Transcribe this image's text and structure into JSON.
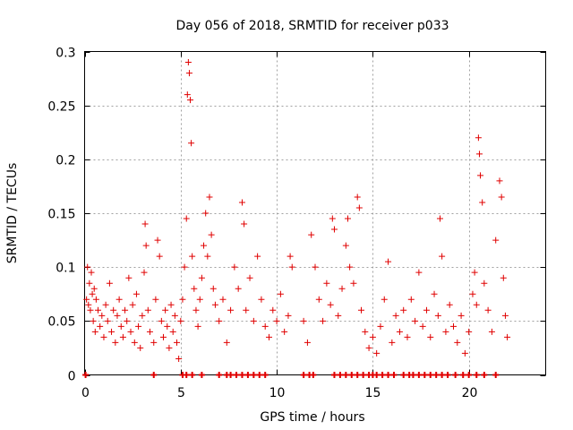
{
  "chart_data": {
    "type": "scatter",
    "title": "Day 056 of 2018, SRMTID for receiver p033",
    "xlabel": "GPS time / hours",
    "ylabel": "SRMTID / TECUs",
    "xlim": [
      0,
      24
    ],
    "ylim": [
      0,
      0.3
    ],
    "grid": true,
    "marker": "+",
    "color": "#e00000",
    "x_ticks": [
      0,
      5,
      10,
      15,
      20
    ],
    "x_tick_labels": [
      "0",
      "5",
      "10",
      "15",
      "20"
    ],
    "y_ticks": [
      0,
      0.05,
      0.1,
      0.15,
      0.2,
      0.25,
      0.3
    ],
    "y_tick_labels": [
      "0",
      "0.05",
      "0.1",
      "0.15",
      "0.2",
      "0.25",
      "0.3"
    ],
    "series": [
      {
        "name": "SRMTID",
        "points": [
          [
            0.1,
            0.07
          ],
          [
            0.15,
            0.1
          ],
          [
            0.2,
            0.065
          ],
          [
            0.25,
            0.085
          ],
          [
            0.3,
            0.06
          ],
          [
            0.35,
            0.095
          ],
          [
            0.4,
            0.075
          ],
          [
            0.45,
            0.05
          ],
          [
            0.5,
            0.08
          ],
          [
            0.55,
            0.04
          ],
          [
            0.6,
            0.07
          ],
          [
            0.7,
            0.06
          ],
          [
            0.8,
            0.045
          ],
          [
            0.9,
            0.055
          ],
          [
            1.0,
            0.035
          ],
          [
            1.1,
            0.065
          ],
          [
            1.2,
            0.05
          ],
          [
            1.3,
            0.085
          ],
          [
            1.4,
            0.04
          ],
          [
            1.5,
            0.06
          ],
          [
            1.6,
            0.03
          ],
          [
            1.7,
            0.055
          ],
          [
            1.8,
            0.07
          ],
          [
            1.9,
            0.045
          ],
          [
            2.0,
            0.035
          ],
          [
            2.1,
            0.06
          ],
          [
            2.2,
            0.05
          ],
          [
            2.3,
            0.09
          ],
          [
            2.4,
            0.04
          ],
          [
            2.5,
            0.065
          ],
          [
            2.6,
            0.03
          ],
          [
            2.7,
            0.075
          ],
          [
            2.8,
            0.045
          ],
          [
            2.9,
            0.025
          ],
          [
            3.0,
            0.055
          ],
          [
            3.1,
            0.095
          ],
          [
            3.15,
            0.14
          ],
          [
            3.2,
            0.12
          ],
          [
            3.3,
            0.06
          ],
          [
            3.4,
            0.04
          ],
          [
            3.6,
            0.03
          ],
          [
            3.7,
            0.07
          ],
          [
            3.8,
            0.125
          ],
          [
            3.9,
            0.11
          ],
          [
            4.0,
            0.05
          ],
          [
            4.1,
            0.035
          ],
          [
            4.2,
            0.06
          ],
          [
            4.3,
            0.045
          ],
          [
            4.4,
            0.025
          ],
          [
            4.5,
            0.065
          ],
          [
            4.6,
            0.04
          ],
          [
            4.7,
            0.055
          ],
          [
            4.8,
            0.03
          ],
          [
            4.9,
            0.015
          ],
          [
            5.0,
            0.05
          ],
          [
            5.1,
            0.07
          ],
          [
            5.2,
            0.1
          ],
          [
            5.3,
            0.145
          ],
          [
            5.35,
            0.26
          ],
          [
            5.4,
            0.29
          ],
          [
            5.45,
            0.28
          ],
          [
            5.5,
            0.255
          ],
          [
            5.55,
            0.215
          ],
          [
            5.6,
            0.11
          ],
          [
            5.7,
            0.08
          ],
          [
            5.8,
            0.06
          ],
          [
            5.9,
            0.045
          ],
          [
            6.0,
            0.07
          ],
          [
            6.1,
            0.09
          ],
          [
            6.2,
            0.12
          ],
          [
            6.3,
            0.15
          ],
          [
            6.4,
            0.11
          ],
          [
            6.5,
            0.165
          ],
          [
            6.6,
            0.13
          ],
          [
            6.7,
            0.08
          ],
          [
            6.8,
            0.065
          ],
          [
            7.0,
            0.05
          ],
          [
            7.2,
            0.07
          ],
          [
            7.4,
            0.03
          ],
          [
            7.6,
            0.06
          ],
          [
            7.8,
            0.1
          ],
          [
            8.0,
            0.08
          ],
          [
            8.2,
            0.16
          ],
          [
            8.3,
            0.14
          ],
          [
            8.4,
            0.06
          ],
          [
            8.6,
            0.09
          ],
          [
            8.8,
            0.05
          ],
          [
            9.0,
            0.11
          ],
          [
            9.2,
            0.07
          ],
          [
            9.4,
            0.045
          ],
          [
            9.6,
            0.035
          ],
          [
            9.8,
            0.06
          ],
          [
            10.0,
            0.05
          ],
          [
            10.2,
            0.075
          ],
          [
            10.4,
            0.04
          ],
          [
            10.6,
            0.055
          ],
          [
            10.7,
            0.11
          ],
          [
            10.8,
            0.1
          ],
          [
            11.4,
            0.05
          ],
          [
            11.6,
            0.03
          ],
          [
            11.8,
            0.13
          ],
          [
            12.0,
            0.1
          ],
          [
            12.2,
            0.07
          ],
          [
            12.4,
            0.05
          ],
          [
            12.6,
            0.085
          ],
          [
            12.8,
            0.065
          ],
          [
            12.9,
            0.145
          ],
          [
            13.0,
            0.135
          ],
          [
            13.2,
            0.055
          ],
          [
            13.4,
            0.08
          ],
          [
            13.6,
            0.12
          ],
          [
            13.7,
            0.145
          ],
          [
            13.8,
            0.1
          ],
          [
            14.0,
            0.085
          ],
          [
            14.2,
            0.165
          ],
          [
            14.3,
            0.155
          ],
          [
            14.4,
            0.06
          ],
          [
            14.6,
            0.04
          ],
          [
            14.8,
            0.025
          ],
          [
            15.0,
            0.035
          ],
          [
            15.2,
            0.02
          ],
          [
            15.4,
            0.045
          ],
          [
            15.6,
            0.07
          ],
          [
            15.8,
            0.105
          ],
          [
            16.0,
            0.03
          ],
          [
            16.2,
            0.055
          ],
          [
            16.4,
            0.04
          ],
          [
            16.6,
            0.06
          ],
          [
            16.8,
            0.035
          ],
          [
            17.0,
            0.07
          ],
          [
            17.2,
            0.05
          ],
          [
            17.4,
            0.095
          ],
          [
            17.6,
            0.045
          ],
          [
            17.8,
            0.06
          ],
          [
            18.0,
            0.035
          ],
          [
            18.2,
            0.075
          ],
          [
            18.4,
            0.055
          ],
          [
            18.5,
            0.145
          ],
          [
            18.6,
            0.11
          ],
          [
            18.8,
            0.04
          ],
          [
            19.0,
            0.065
          ],
          [
            19.2,
            0.045
          ],
          [
            19.4,
            0.03
          ],
          [
            19.6,
            0.055
          ],
          [
            19.8,
            0.02
          ],
          [
            20.0,
            0.04
          ],
          [
            20.2,
            0.075
          ],
          [
            20.3,
            0.095
          ],
          [
            20.4,
            0.065
          ],
          [
            20.5,
            0.22
          ],
          [
            20.55,
            0.205
          ],
          [
            20.6,
            0.185
          ],
          [
            20.7,
            0.16
          ],
          [
            20.8,
            0.085
          ],
          [
            21.0,
            0.06
          ],
          [
            21.2,
            0.04
          ],
          [
            21.4,
            0.125
          ],
          [
            21.6,
            0.18
          ],
          [
            21.7,
            0.165
          ],
          [
            21.8,
            0.09
          ],
          [
            21.9,
            0.055
          ],
          [
            22.0,
            0.035
          ]
        ]
      }
    ],
    "zero_markers": [
      0.05,
      3.6,
      5.1,
      5.3,
      5.6,
      6.1,
      7.0,
      7.4,
      7.6,
      7.9,
      8.2,
      8.5,
      8.8,
      9.1,
      9.4,
      11.4,
      11.7,
      11.9,
      13.0,
      13.3,
      13.6,
      13.9,
      14.2,
      14.5,
      14.8,
      15.0,
      15.2,
      15.5,
      15.8,
      16.1,
      16.6,
      16.9,
      17.1,
      17.4,
      17.7,
      18.0,
      18.3,
      18.6,
      18.9,
      19.3,
      19.7,
      20.0,
      20.4,
      20.8,
      21.4
    ]
  }
}
